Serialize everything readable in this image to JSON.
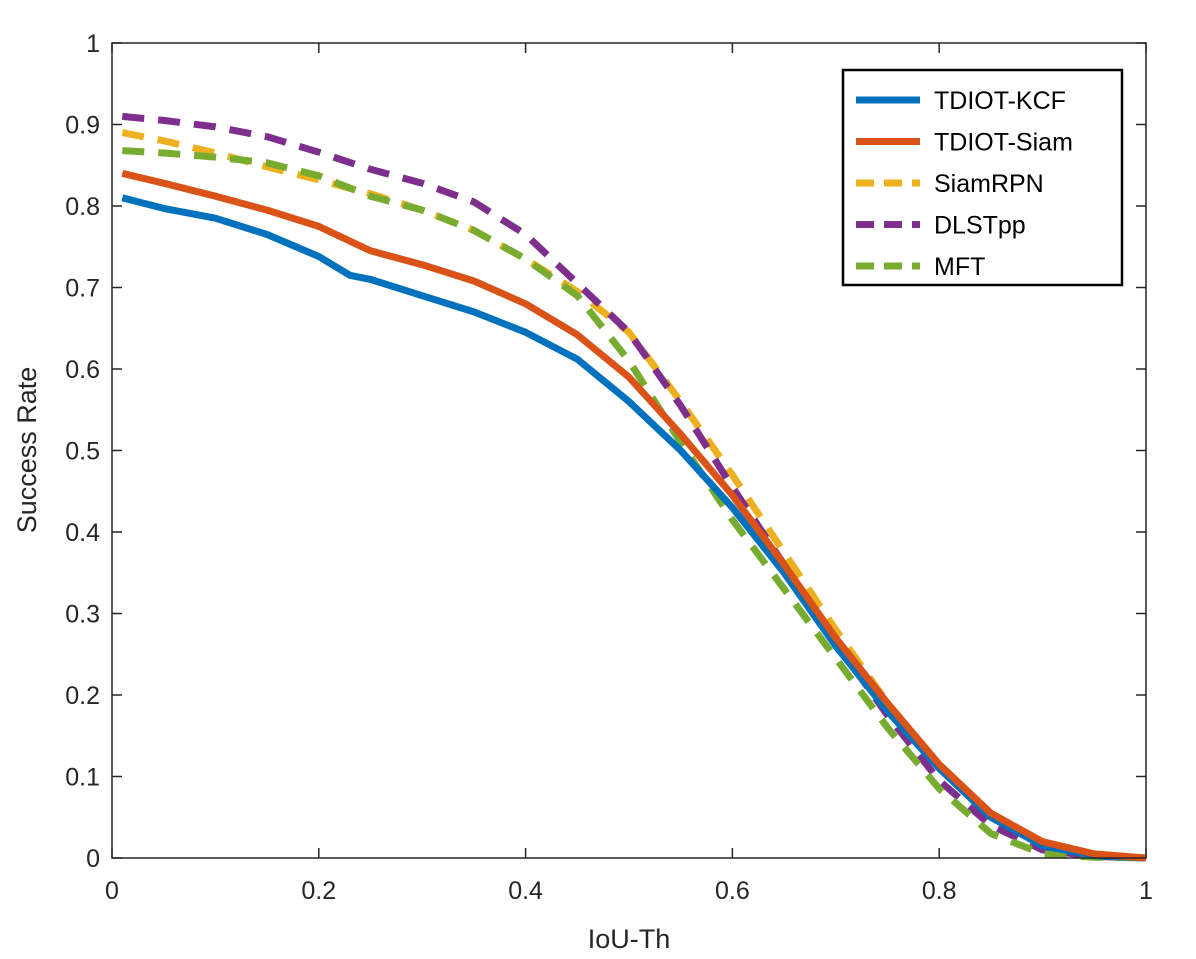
{
  "chart_data": {
    "type": "line",
    "title": "",
    "xlabel": "IoU-Th",
    "ylabel": "Success Rate",
    "xlim": [
      0,
      1
    ],
    "ylim": [
      0,
      1
    ],
    "xticks": [
      0,
      0.2,
      0.4,
      0.6,
      0.8,
      1
    ],
    "xtick_labels": [
      "0",
      "0.2",
      "0.4",
      "0.6",
      "0.8",
      "1"
    ],
    "yticks": [
      0,
      0.1,
      0.2,
      0.3,
      0.4,
      0.5,
      0.6,
      0.7,
      0.8,
      0.9,
      1
    ],
    "ytick_labels": [
      "0",
      "0.1",
      "0.2",
      "0.3",
      "0.4",
      "0.5",
      "0.6",
      "0.7",
      "0.8",
      "0.9",
      "1"
    ],
    "grid": false,
    "legend_position": "top-right",
    "series": [
      {
        "name": "TDIOT-KCF",
        "style": "solid",
        "color": "#0072BD",
        "x": [
          0.01,
          0.05,
          0.1,
          0.15,
          0.2,
          0.23,
          0.25,
          0.3,
          0.35,
          0.4,
          0.45,
          0.5,
          0.55,
          0.6,
          0.65,
          0.7,
          0.75,
          0.8,
          0.85,
          0.9,
          0.95,
          1.0
        ],
        "y": [
          0.81,
          0.797,
          0.785,
          0.765,
          0.738,
          0.715,
          0.71,
          0.69,
          0.67,
          0.645,
          0.612,
          0.56,
          0.5,
          0.43,
          0.35,
          0.26,
          0.18,
          0.11,
          0.05,
          0.015,
          0.003,
          0.0
        ]
      },
      {
        "name": "TDIOT-Siam",
        "style": "solid",
        "color": "#D95319",
        "x": [
          0.01,
          0.05,
          0.1,
          0.15,
          0.2,
          0.25,
          0.3,
          0.35,
          0.4,
          0.45,
          0.5,
          0.55,
          0.6,
          0.65,
          0.7,
          0.75,
          0.8,
          0.85,
          0.9,
          0.95,
          1.0
        ],
        "y": [
          0.84,
          0.828,
          0.812,
          0.795,
          0.775,
          0.745,
          0.728,
          0.708,
          0.68,
          0.642,
          0.59,
          0.52,
          0.445,
          0.36,
          0.27,
          0.19,
          0.115,
          0.055,
          0.02,
          0.005,
          0.0
        ]
      },
      {
        "name": "SiamRPN",
        "style": "dashed",
        "color": "#EDB120",
        "x": [
          0.01,
          0.05,
          0.1,
          0.15,
          0.2,
          0.25,
          0.3,
          0.35,
          0.4,
          0.45,
          0.5,
          0.55,
          0.6,
          0.65,
          0.7,
          0.75,
          0.8,
          0.85,
          0.9,
          0.95,
          1.0
        ],
        "y": [
          0.89,
          0.88,
          0.865,
          0.848,
          0.832,
          0.815,
          0.795,
          0.77,
          0.735,
          0.695,
          0.645,
          0.56,
          0.47,
          0.375,
          0.28,
          0.19,
          0.11,
          0.05,
          0.015,
          0.003,
          0.0
        ]
      },
      {
        "name": "DLSTpp",
        "style": "dashed",
        "color": "#7E2F8E",
        "x": [
          0.01,
          0.05,
          0.1,
          0.15,
          0.2,
          0.25,
          0.3,
          0.35,
          0.4,
          0.45,
          0.5,
          0.55,
          0.6,
          0.65,
          0.7,
          0.75,
          0.8,
          0.85,
          0.9,
          0.95,
          1.0
        ],
        "y": [
          0.91,
          0.905,
          0.897,
          0.885,
          0.866,
          0.845,
          0.828,
          0.805,
          0.765,
          0.705,
          0.645,
          0.555,
          0.455,
          0.36,
          0.265,
          0.175,
          0.095,
          0.04,
          0.01,
          0.002,
          0.0
        ]
      },
      {
        "name": "MFT",
        "style": "dashed",
        "color": "#77AC30",
        "x": [
          0.01,
          0.05,
          0.1,
          0.15,
          0.2,
          0.25,
          0.3,
          0.35,
          0.4,
          0.45,
          0.5,
          0.55,
          0.6,
          0.65,
          0.7,
          0.75,
          0.8,
          0.85,
          0.9,
          0.95,
          1.0
        ],
        "y": [
          0.868,
          0.865,
          0.86,
          0.853,
          0.837,
          0.812,
          0.795,
          0.77,
          0.735,
          0.69,
          0.61,
          0.51,
          0.415,
          0.33,
          0.245,
          0.16,
          0.085,
          0.03,
          0.005,
          0.001,
          0.0
        ]
      }
    ]
  }
}
